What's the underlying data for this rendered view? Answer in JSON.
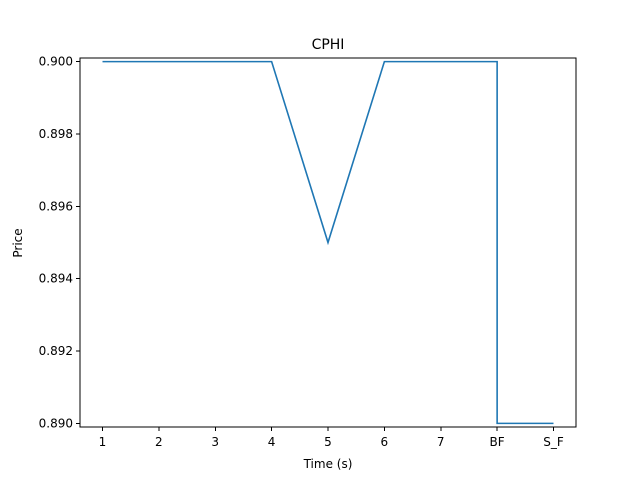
{
  "chart_data": {
    "type": "line",
    "title": "CPHI",
    "xlabel": "Time (s)",
    "ylabel": "Price",
    "categories": [
      "1",
      "2",
      "3",
      "4",
      "5",
      "6",
      "7",
      "BF",
      "S_F"
    ],
    "series": [
      {
        "name": "",
        "color": "#1f77b4",
        "values": [
          0.9,
          0.9,
          0.9,
          0.9,
          0.895,
          0.9,
          0.9,
          0.9,
          0.89
        ],
        "step_at": "BF"
      }
    ],
    "ylim": [
      0.8899,
      0.9001
    ],
    "yticks": [
      0.89,
      0.892,
      0.894,
      0.896,
      0.898,
      0.9
    ],
    "ytick_labels": [
      "0.890",
      "0.892",
      "0.894",
      "0.896",
      "0.898",
      "0.900"
    ],
    "grid": false,
    "legend": "none"
  }
}
